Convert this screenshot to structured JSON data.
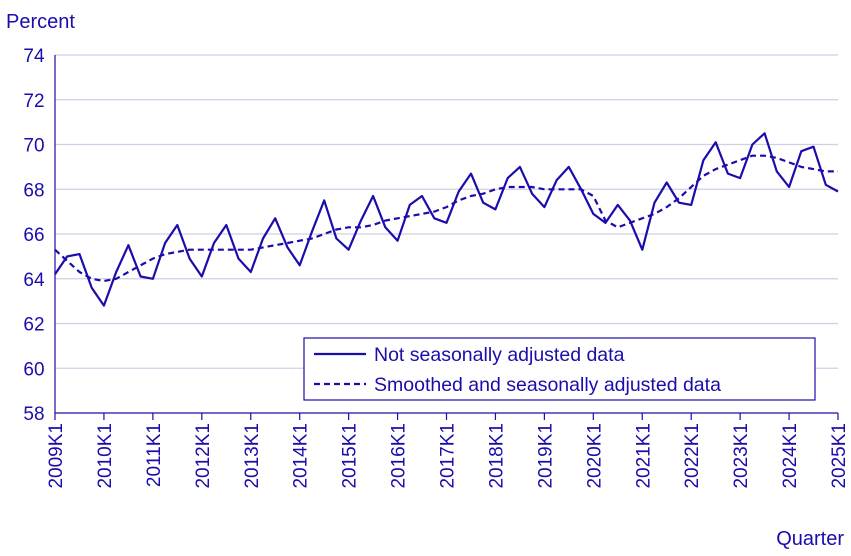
{
  "chart_data": {
    "type": "line",
    "ylabel": "Percent",
    "xlabel": "Quarter",
    "ylim": [
      58,
      74
    ],
    "yticks": [
      58,
      60,
      62,
      64,
      66,
      68,
      70,
      72,
      74
    ],
    "xtick_labels": [
      "2009K1",
      "2010K1",
      "2011K1",
      "2012K1",
      "2013K1",
      "2014K1",
      "2015K1",
      "2016K1",
      "2017K1",
      "2018K1",
      "2019K1",
      "2020K1",
      "2021K1",
      "2022K1",
      "2023K1",
      "2024K1",
      "2025K1"
    ],
    "grid": true,
    "legend_position": "bottom-right",
    "colors": {
      "series": "#1a0dab",
      "grid": "#cfcfe6",
      "axis": "#1a0dab"
    },
    "x": [
      "2009K1",
      "2009K2",
      "2009K3",
      "2009K4",
      "2010K1",
      "2010K2",
      "2010K3",
      "2010K4",
      "2011K1",
      "2011K2",
      "2011K3",
      "2011K4",
      "2012K1",
      "2012K2",
      "2012K3",
      "2012K4",
      "2013K1",
      "2013K2",
      "2013K3",
      "2013K4",
      "2014K1",
      "2014K2",
      "2014K3",
      "2014K4",
      "2015K1",
      "2015K2",
      "2015K3",
      "2015K4",
      "2016K1",
      "2016K2",
      "2016K3",
      "2016K4",
      "2017K1",
      "2017K2",
      "2017K3",
      "2017K4",
      "2018K1",
      "2018K2",
      "2018K3",
      "2018K4",
      "2019K1",
      "2019K2",
      "2019K3",
      "2019K4",
      "2020K1",
      "2020K2",
      "2020K3",
      "2020K4",
      "2021K1",
      "2021K2",
      "2021K3",
      "2021K4",
      "2022K1",
      "2022K2",
      "2022K3",
      "2022K4",
      "2023K1",
      "2023K2",
      "2023K3",
      "2023K4",
      "2024K1",
      "2024K2",
      "2024K3",
      "2024K4",
      "2025K1"
    ],
    "series": [
      {
        "name": "Not seasonally adjusted data",
        "style": "solid",
        "values": [
          64.2,
          65.0,
          65.1,
          63.6,
          62.8,
          64.3,
          65.5,
          64.1,
          64.0,
          65.6,
          66.4,
          64.9,
          64.1,
          65.6,
          66.4,
          64.9,
          64.3,
          65.8,
          66.7,
          65.4,
          64.6,
          66.1,
          67.5,
          65.8,
          65.3,
          66.6,
          67.7,
          66.3,
          65.7,
          67.3,
          67.7,
          66.7,
          66.5,
          67.9,
          68.7,
          67.4,
          67.1,
          68.5,
          69.0,
          67.8,
          67.2,
          68.4,
          69.0,
          68.0,
          66.9,
          66.5,
          67.3,
          66.6,
          65.3,
          67.4,
          68.3,
          67.4,
          67.3,
          69.3,
          70.1,
          68.7,
          68.5,
          70.0,
          70.5,
          68.8,
          68.1,
          69.7,
          69.9,
          68.2,
          67.9
        ]
      },
      {
        "name": "Smoothed and seasonally adjusted data",
        "style": "dashed",
        "values": [
          65.3,
          64.8,
          64.3,
          64.0,
          63.9,
          64.0,
          64.3,
          64.6,
          64.9,
          65.1,
          65.2,
          65.3,
          65.3,
          65.3,
          65.3,
          65.3,
          65.3,
          65.4,
          65.5,
          65.6,
          65.7,
          65.8,
          66.0,
          66.2,
          66.3,
          66.3,
          66.4,
          66.6,
          66.7,
          66.8,
          66.9,
          67.0,
          67.2,
          67.5,
          67.7,
          67.8,
          68.0,
          68.1,
          68.1,
          68.1,
          68.0,
          68.0,
          68.0,
          68.0,
          67.7,
          66.6,
          66.3,
          66.5,
          66.7,
          66.9,
          67.2,
          67.6,
          68.1,
          68.6,
          68.9,
          69.1,
          69.3,
          69.5,
          69.5,
          69.4,
          69.2,
          69.0,
          68.9,
          68.8,
          68.8
        ]
      }
    ]
  }
}
